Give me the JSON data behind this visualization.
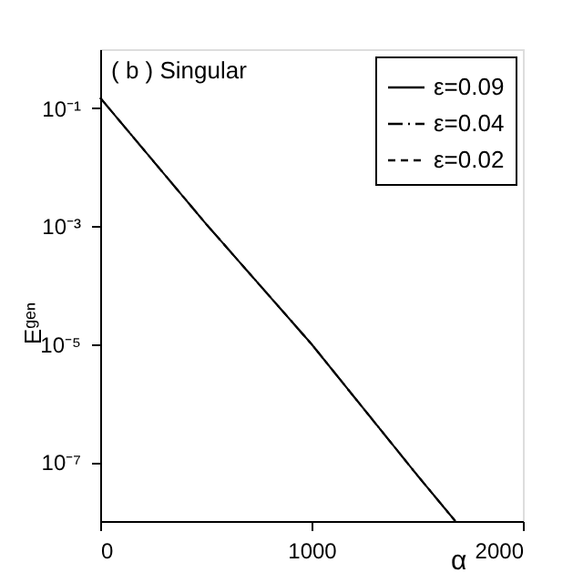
{
  "chart_data": {
    "type": "line",
    "annotations": [
      "( b ) Singular"
    ],
    "xlabel": "α",
    "ylabel": "Eᵍᵉⁿ",
    "x": [
      0,
      500,
      1000,
      1500,
      1680
    ],
    "series": [
      {
        "name": "ε=0.09",
        "color": "#000000",
        "line_style": "solid",
        "values": [
          0.15,
          0.0011,
          1e-05,
          6e-08,
          1e-08
        ]
      },
      {
        "name": "ε=0.04",
        "color": "#000000",
        "line_style": "dashdot",
        "values": [
          0.15,
          0.0011,
          1e-05,
          6e-08,
          1e-08
        ]
      },
      {
        "name": "ε=0.02",
        "color": "#000000",
        "line_style": "dashed",
        "values": [
          0.15,
          0.0011,
          1e-05,
          6e-08,
          1e-08
        ]
      }
    ],
    "log": "y",
    "xlim": [
      0,
      2000
    ],
    "xticks": [
      0,
      1000,
      2000
    ],
    "ylim": [
      1e-08,
      1
    ],
    "yticks": [
      {
        "value": 0.1,
        "label": "10⁻¹"
      },
      {
        "value": 0.001,
        "label": "10⁻³"
      },
      {
        "value": 1e-05,
        "label": "10⁻⁵"
      },
      {
        "value": 1e-07,
        "label": "10⁻⁷"
      }
    ],
    "grid": false,
    "legend": "top right",
    "marker": "none"
  }
}
